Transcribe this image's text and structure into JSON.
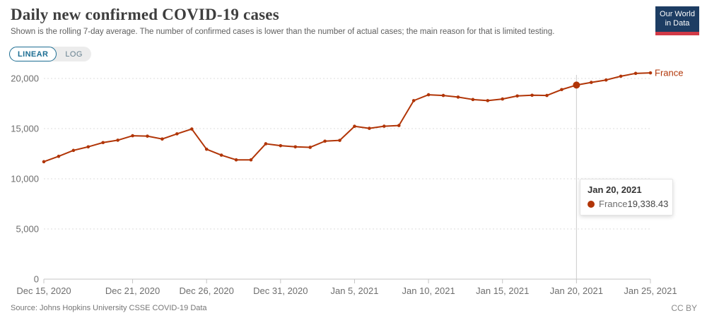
{
  "header": {
    "title": "Daily new confirmed COVID-19 cases",
    "subtitle": "Shown is the rolling 7-day average. The number of confirmed cases is lower than the number of actual cases; the main reason for that is limited testing."
  },
  "logo": {
    "line1": "Our World",
    "line2": "in Data",
    "bg_color": "#1d3d63",
    "bar_color": "#d23a47"
  },
  "controls": {
    "linear_label": "LINEAR",
    "log_label": "LOG",
    "active": "LINEAR",
    "accent_color": "#1d6e93"
  },
  "tooltip": {
    "date": "Jan 20, 2021",
    "series": "France",
    "value": "19,338.43"
  },
  "footer": {
    "source": "Source: Johns Hopkins University CSSE COVID-19 Data",
    "license": "CC BY"
  },
  "chart_data": {
    "type": "line",
    "title": "Daily new confirmed COVID-19 cases",
    "xlabel": "",
    "ylabel": "",
    "grid": true,
    "legend_position": "end-of-line-label",
    "end_label": "France",
    "line_color": "#B13507",
    "y_ticks": [
      0,
      5000,
      10000,
      15000,
      20000
    ],
    "y_tick_labels": [
      "0",
      "5,000",
      "10,000",
      "15,000",
      "20,000"
    ],
    "ylim": [
      0,
      21200
    ],
    "x_tick_labels": [
      "Dec 15, 2020",
      "Dec 21, 2020",
      "Dec 26, 2020",
      "Dec 31, 2020",
      "Jan 5, 2021",
      "Jan 10, 2021",
      "Jan 15, 2021",
      "Jan 20, 2021",
      "Jan 25, 2021"
    ],
    "x_tick_indices": [
      0,
      6,
      11,
      16,
      21,
      26,
      31,
      36,
      41
    ],
    "highlight": {
      "index": 36,
      "date": "Jan 20, 2021",
      "value": 19338.43
    },
    "series": [
      {
        "name": "France",
        "color": "#B13507",
        "dates": [
          "Dec 15, 2020",
          "Dec 16, 2020",
          "Dec 17, 2020",
          "Dec 18, 2020",
          "Dec 19, 2020",
          "Dec 20, 2020",
          "Dec 21, 2020",
          "Dec 22, 2020",
          "Dec 23, 2020",
          "Dec 24, 2020",
          "Dec 25, 2020",
          "Dec 26, 2020",
          "Dec 27, 2020",
          "Dec 28, 2020",
          "Dec 29, 2020",
          "Dec 30, 2020",
          "Dec 31, 2020",
          "Jan 1, 2021",
          "Jan 2, 2021",
          "Jan 3, 2021",
          "Jan 4, 2021",
          "Jan 5, 2021",
          "Jan 6, 2021",
          "Jan 7, 2021",
          "Jan 8, 2021",
          "Jan 9, 2021",
          "Jan 10, 2021",
          "Jan 11, 2021",
          "Jan 12, 2021",
          "Jan 13, 2021",
          "Jan 14, 2021",
          "Jan 15, 2021",
          "Jan 16, 2021",
          "Jan 17, 2021",
          "Jan 18, 2021",
          "Jan 19, 2021",
          "Jan 20, 2021",
          "Jan 21, 2021",
          "Jan 22, 2021",
          "Jan 23, 2021",
          "Jan 24, 2021",
          "Jan 25, 2021"
        ],
        "values": [
          11700,
          12240,
          12830,
          13185,
          13610,
          13845,
          14290,
          14250,
          13965,
          14480,
          14960,
          12945,
          12355,
          11885,
          11885,
          13490,
          13300,
          13185,
          13135,
          13750,
          13830,
          15230,
          15030,
          15240,
          15310,
          17790,
          18375,
          18305,
          18140,
          17900,
          17790,
          17950,
          18255,
          18325,
          18305,
          18890,
          19338.43,
          19605,
          19845,
          20220,
          20505,
          20555
        ]
      }
    ]
  }
}
